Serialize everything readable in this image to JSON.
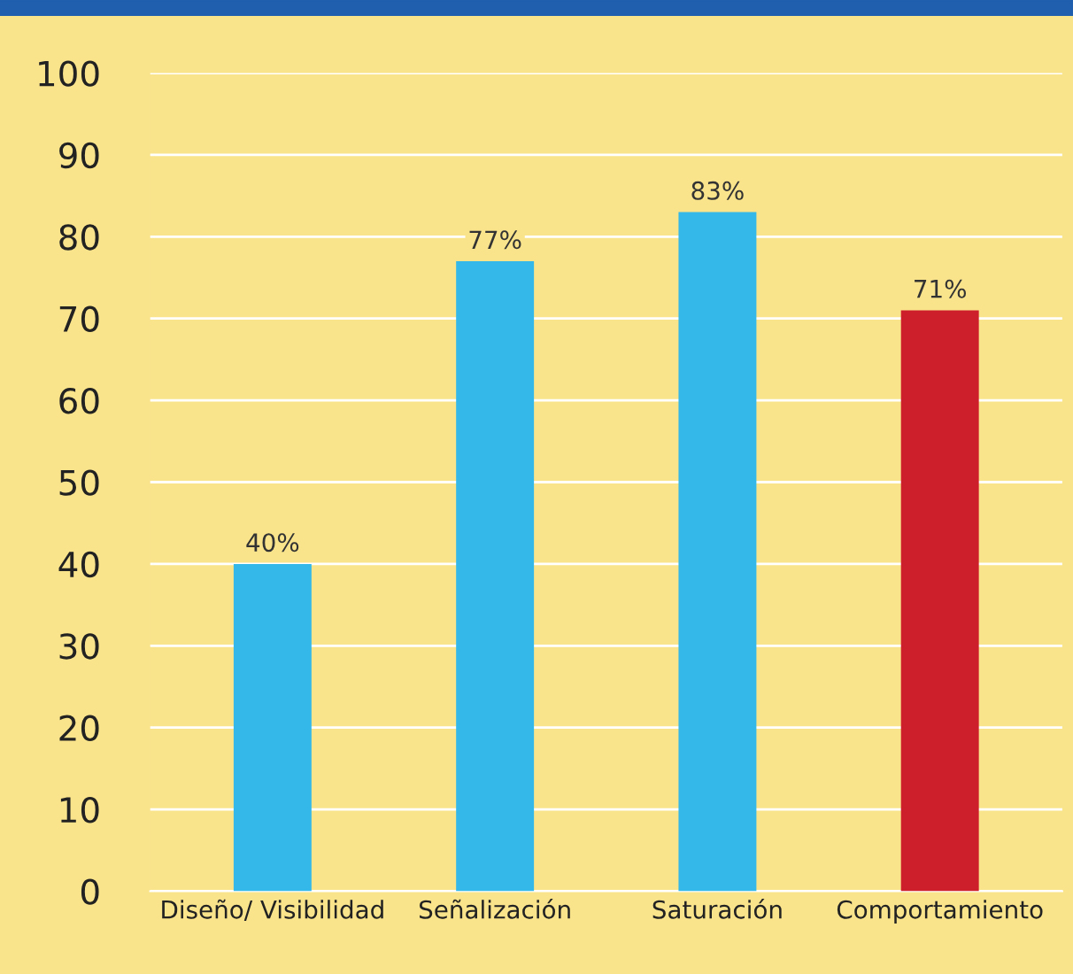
{
  "chart_data": {
    "type": "bar",
    "categories": [
      "Diseño/ Visibilidad",
      "Señalización",
      "Saturación",
      "Comportamiento"
    ],
    "values": [
      40,
      77,
      83,
      71
    ],
    "colors": [
      "#33b8e9",
      "#33b8e9",
      "#33b8e9",
      "#cc1f2b"
    ],
    "value_labels": [
      "40%",
      "77%",
      "83%",
      "71%"
    ],
    "ylim": [
      0,
      100
    ],
    "yticks": [
      0,
      10,
      20,
      30,
      40,
      50,
      60,
      70,
      80,
      90,
      100
    ],
    "grid": "y"
  }
}
